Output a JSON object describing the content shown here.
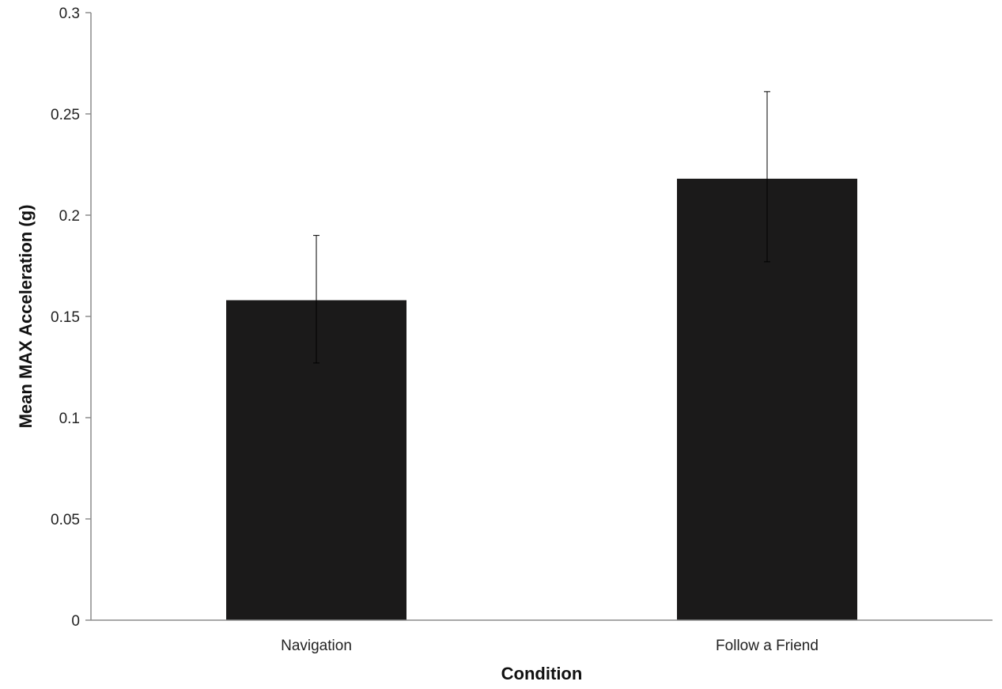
{
  "chart_data": {
    "type": "bar",
    "categories": [
      "Navigation",
      "Follow a Friend"
    ],
    "values": [
      0.158,
      0.218
    ],
    "error_high": [
      0.19,
      0.261
    ],
    "error_low": [
      0.127,
      0.177
    ],
    "xlabel": "Condition",
    "ylabel": "Mean MAX Acceleration (g)",
    "ylim": [
      0,
      0.3
    ],
    "yticks": [
      "0",
      "0.05",
      "0.1",
      "0.15",
      "0.2",
      "0.25",
      "0.3"
    ],
    "grid": false,
    "bar_color": "#1b1a1a",
    "axis_color": "#8c8c8c",
    "error_bar_color": "#000000"
  }
}
